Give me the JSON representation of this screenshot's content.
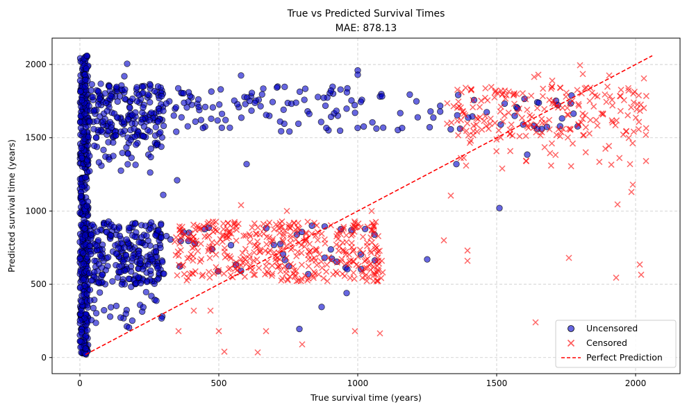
{
  "chart_data": {
    "type": "scatter",
    "title": "True vs Predicted Survival Times",
    "subtitle": "MAE: 878.13",
    "xlabel": "True survival time (years)",
    "ylabel": "Predicted survival time (years)",
    "xlim": [
      -100,
      2160
    ],
    "ylim": [
      -110,
      2180
    ],
    "xticks": [
      0,
      500,
      1000,
      1500,
      2000
    ],
    "yticks": [
      0,
      500,
      1000,
      1500,
      2000
    ],
    "grid": true,
    "legend_position": "lower-right",
    "series": [
      {
        "name": "Uncensored",
        "marker": "circle",
        "color": "#0000cc",
        "clusters": [
          {
            "x_range": [
              0,
              30
            ],
            "y_range": [
              20,
              2060
            ],
            "count": 450
          },
          {
            "x_range": [
              30,
              300
            ],
            "y_range": [
              500,
              930
            ],
            "count": 250
          },
          {
            "x_range": [
              30,
              300
            ],
            "y_range": [
              1500,
              1870
            ],
            "count": 200
          },
          {
            "x_range": [
              30,
              300
            ],
            "y_range": [
              1250,
              1500
            ],
            "count": 35
          },
          {
            "x_range": [
              30,
              300
            ],
            "y_range": [
              200,
              500
            ],
            "count": 30
          },
          {
            "x_range": [
              300,
              1100
            ],
            "y_range": [
              1540,
              1850
            ],
            "count": 110
          },
          {
            "x_range": [
              300,
              1100
            ],
            "y_range": [
              550,
              900
            ],
            "count": 40
          },
          {
            "x_range": [
              1100,
              1800
            ],
            "y_range": [
              1550,
              1800
            ],
            "count": 40
          }
        ],
        "points": [
          {
            "x": 25,
            "y": 2060
          },
          {
            "x": 170,
            "y": 2005
          },
          {
            "x": 160,
            "y": 1920
          },
          {
            "x": 580,
            "y": 1925
          },
          {
            "x": 1000,
            "y": 1960
          },
          {
            "x": 1000,
            "y": 1930
          },
          {
            "x": 350,
            "y": 1210
          },
          {
            "x": 300,
            "y": 1110
          },
          {
            "x": 790,
            "y": 195
          },
          {
            "x": 870,
            "y": 345
          },
          {
            "x": 1250,
            "y": 670
          },
          {
            "x": 1510,
            "y": 1020
          },
          {
            "x": 1355,
            "y": 1320
          },
          {
            "x": 1610,
            "y": 1385
          },
          {
            "x": 20,
            "y": 25
          },
          {
            "x": 600,
            "y": 1320
          },
          {
            "x": 960,
            "y": 440
          }
        ]
      },
      {
        "name": "Censored",
        "marker": "x",
        "color": "#ff0000",
        "clusters": [
          {
            "x_range": [
              340,
              1090
            ],
            "y_range": [
              520,
              930
            ],
            "count": 420
          },
          {
            "x_range": [
              1320,
              2040
            ],
            "y_range": [
              1500,
              1850
            ],
            "count": 200
          },
          {
            "x_range": [
              1320,
              2040
            ],
            "y_range": [
              1300,
              1500
            ],
            "count": 25
          }
        ],
        "points": [
          {
            "x": 520,
            "y": 40
          },
          {
            "x": 640,
            "y": 35
          },
          {
            "x": 355,
            "y": 180
          },
          {
            "x": 500,
            "y": 180
          },
          {
            "x": 670,
            "y": 180
          },
          {
            "x": 800,
            "y": 90
          },
          {
            "x": 990,
            "y": 180
          },
          {
            "x": 1080,
            "y": 165
          },
          {
            "x": 410,
            "y": 320
          },
          {
            "x": 470,
            "y": 320
          },
          {
            "x": 580,
            "y": 1040
          },
          {
            "x": 745,
            "y": 1000
          },
          {
            "x": 1050,
            "y": 1000
          },
          {
            "x": 1310,
            "y": 800
          },
          {
            "x": 1395,
            "y": 730
          },
          {
            "x": 1395,
            "y": 660
          },
          {
            "x": 1640,
            "y": 240
          },
          {
            "x": 1760,
            "y": 680
          },
          {
            "x": 1930,
            "y": 545
          },
          {
            "x": 2015,
            "y": 635
          },
          {
            "x": 2020,
            "y": 565
          },
          {
            "x": 1935,
            "y": 1045
          },
          {
            "x": 1985,
            "y": 1130
          },
          {
            "x": 1990,
            "y": 1180
          },
          {
            "x": 1335,
            "y": 1105
          },
          {
            "x": 1800,
            "y": 1995
          },
          {
            "x": 1905,
            "y": 1925
          },
          {
            "x": 1810,
            "y": 1935
          },
          {
            "x": 2030,
            "y": 1905
          },
          {
            "x": 1635,
            "y": 1915
          },
          {
            "x": 1650,
            "y": 1930
          },
          {
            "x": 1700,
            "y": 1890
          },
          {
            "x": 1520,
            "y": 1290
          },
          {
            "x": 1390,
            "y": 1310
          },
          {
            "x": 1980,
            "y": 1320
          }
        ]
      },
      {
        "name": "Perfect Prediction",
        "marker": "dashed-line",
        "color": "#ff0000",
        "x": [
          20,
          2060
        ],
        "y": [
          20,
          2060
        ]
      }
    ]
  },
  "legend": {
    "uncensored": "Uncensored",
    "censored": "Censored",
    "perfect": "Perfect Prediction"
  }
}
